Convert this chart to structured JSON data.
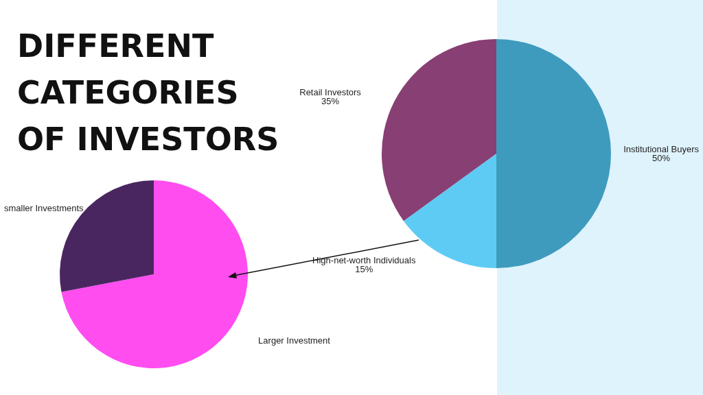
{
  "chart_data": [
    {
      "type": "pie",
      "categories": [
        "Institutional Buyers",
        "High-net-worth Individuals",
        "Retail Investors"
      ],
      "values": [
        50,
        15,
        35
      ],
      "colors": [
        "#3e9bbd",
        "#5ecbf5",
        "#883f73"
      ],
      "value_labels": [
        "50%",
        "15%",
        "35%"
      ],
      "legend": false
    },
    {
      "type": "pie",
      "title": "DIFFERENT\nCATEGORIES\nOF INVESTORS",
      "categories": [
        "Larger Investment",
        "smaller Investments"
      ],
      "values": [
        72,
        28
      ],
      "colors": [
        "#ff4df0",
        "#4a2660"
      ],
      "legend": false
    }
  ]
}
